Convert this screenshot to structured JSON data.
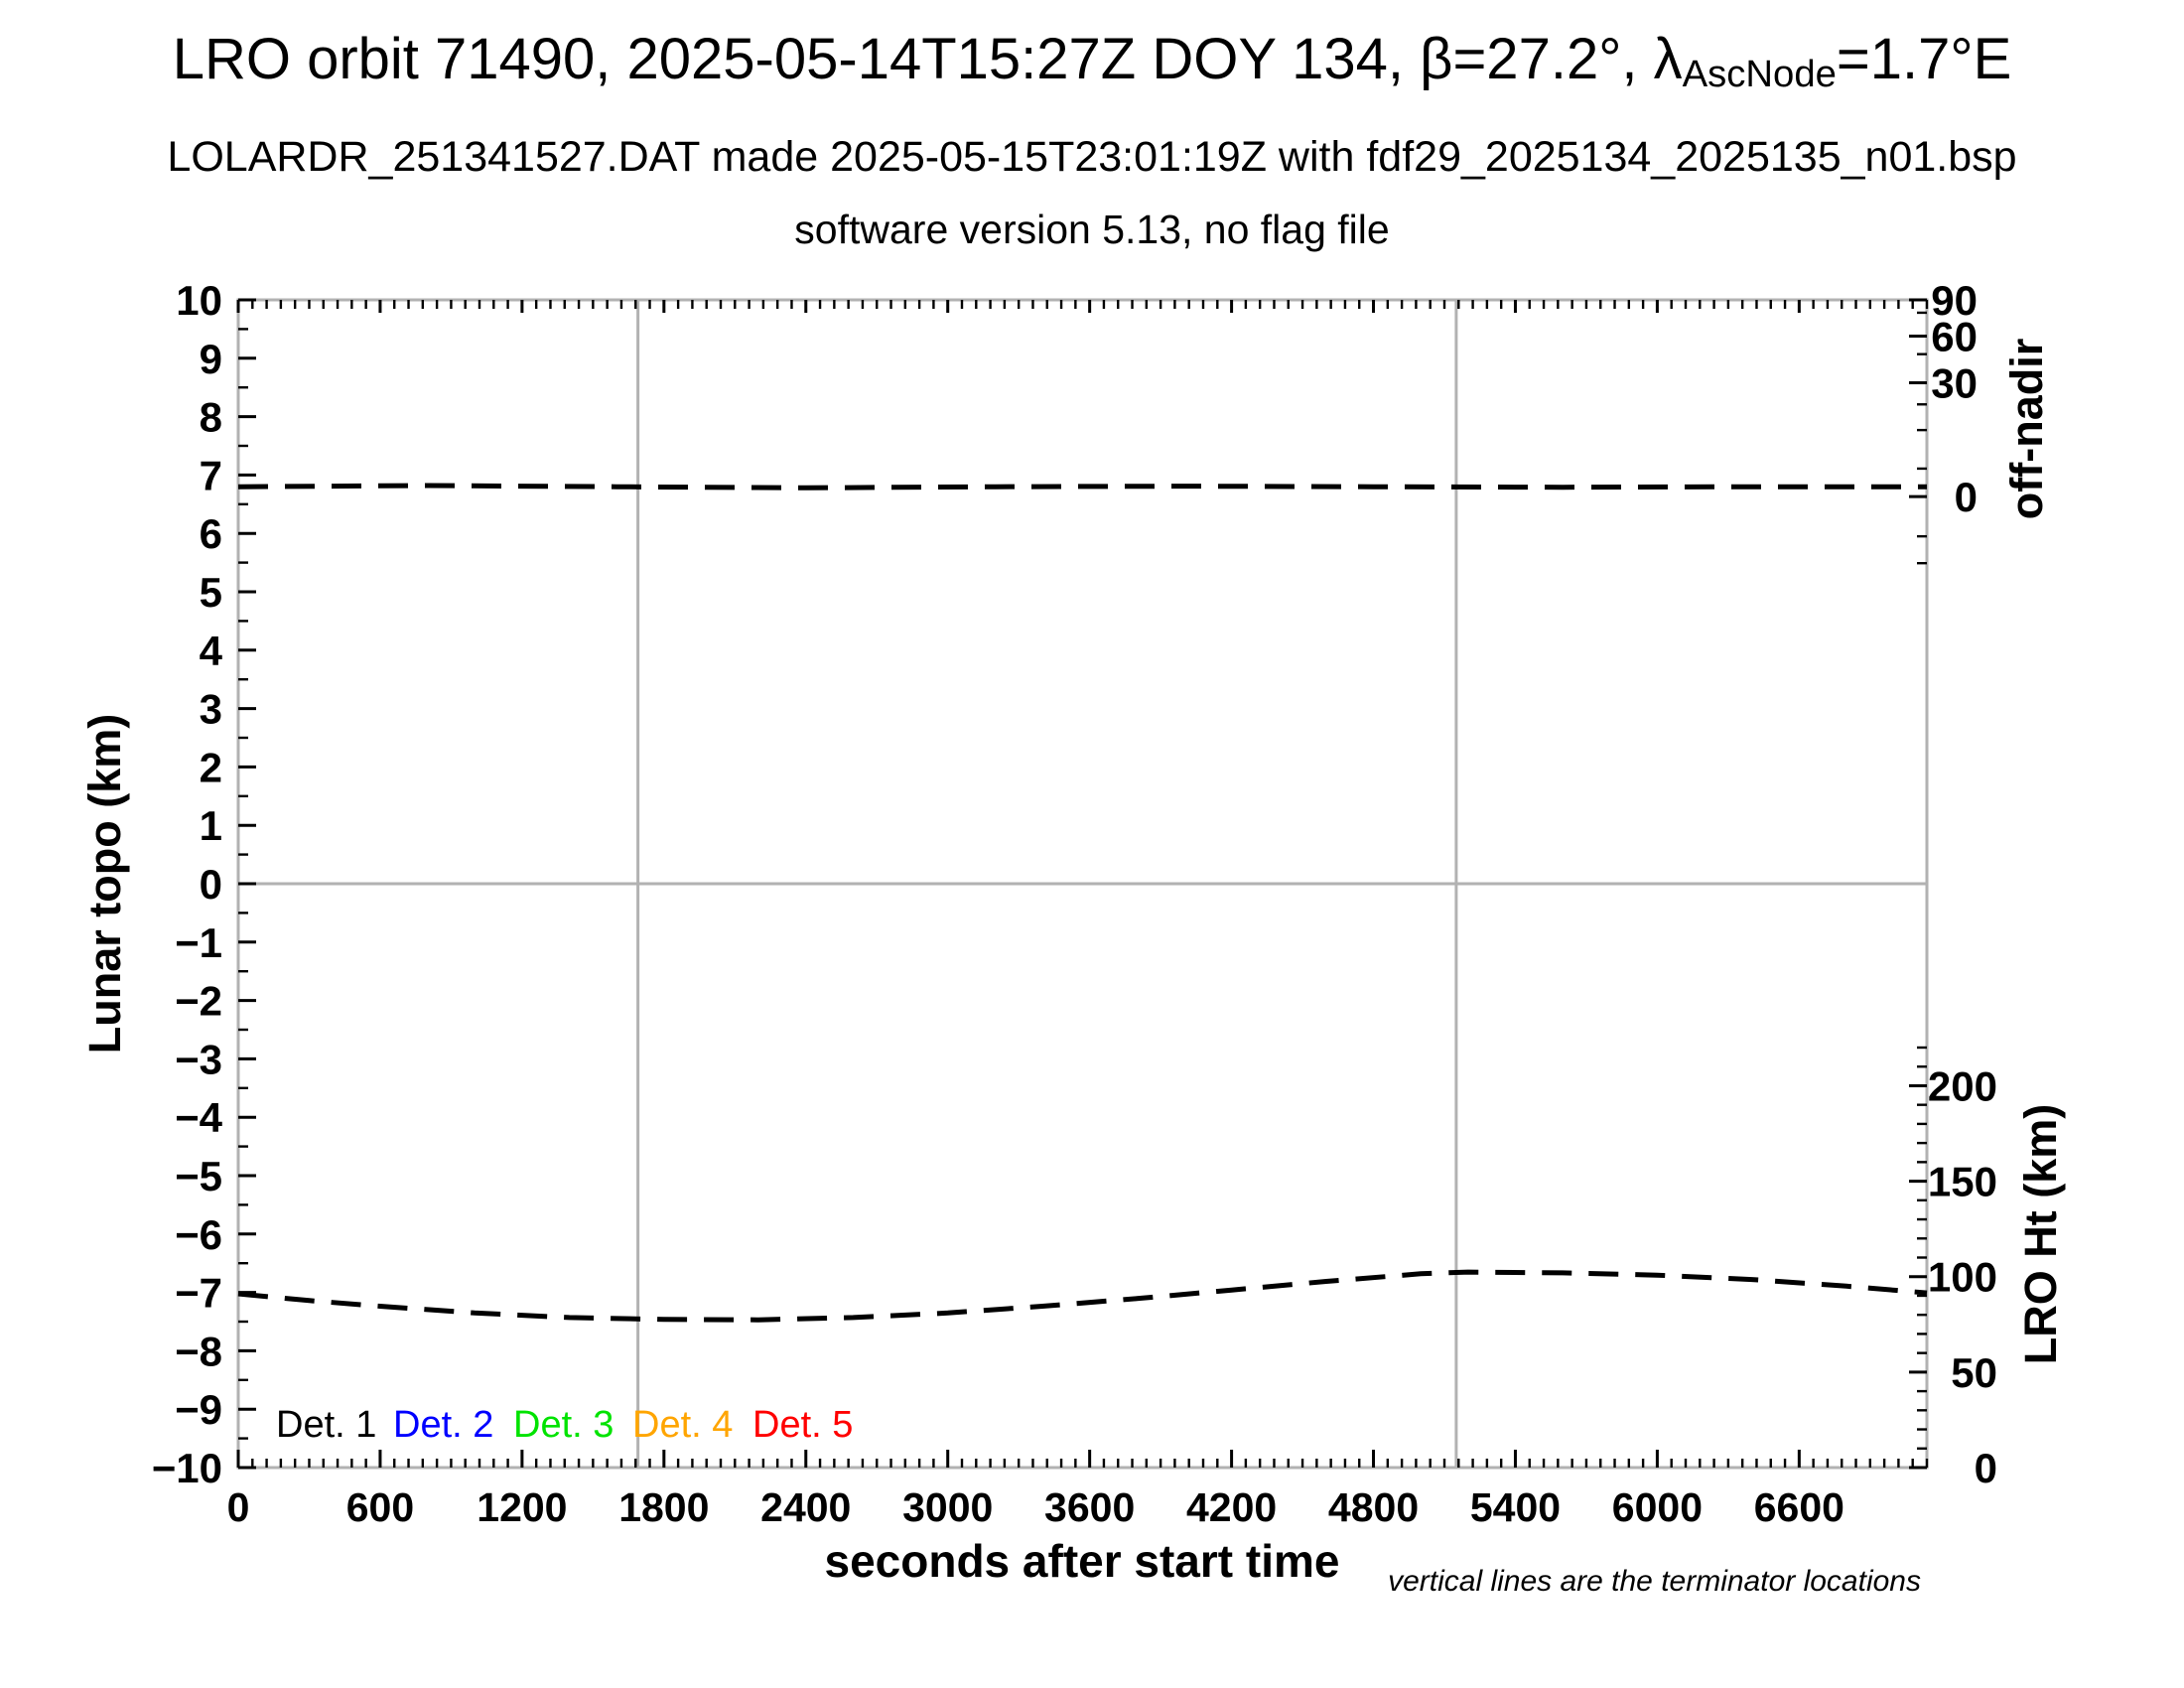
{
  "header": {
    "title_pre": "LRO orbit 71490, 2025-05-14T15:27Z DOY 134, β=27.2°, λ",
    "title_sub": "AscNode",
    "title_post": "=1.7°E",
    "subtitle1": "LOLARDR_251341527.DAT made 2025-05-15T23:01:19Z with fdf29_2025134_2025135_n01.bsp",
    "subtitle2": "software version 5.13, no flag file"
  },
  "footnote": "vertical lines are the terminator locations",
  "legend": {
    "items": [
      {
        "label": "Det. 1",
        "color": "#000000"
      },
      {
        "label": "Det. 2",
        "color": "#0000ff"
      },
      {
        "label": "Det. 3",
        "color": "#00e300"
      },
      {
        "label": "Det. 4",
        "color": "#ffa500"
      },
      {
        "label": "Det. 5",
        "color": "#ff0000"
      }
    ]
  },
  "chart_data": {
    "type": "line",
    "title": "LRO orbit 71490, 2025-05-14T15:27Z DOY 134, β=27.2°, λAscNode=1.7°E",
    "xlabel": "seconds after start time",
    "ylabel_left": "Lunar topo (km)",
    "ylabel_right_upper": "off-nadir",
    "ylabel_right_lower": "LRO Ht (km)",
    "xlim": [
      0,
      7140
    ],
    "x_major_ticks": [
      0,
      600,
      1200,
      1800,
      2400,
      3000,
      3600,
      4200,
      4800,
      5400,
      6000,
      6600
    ],
    "x_minor_step": 60,
    "ylim_left": [
      -10,
      10
    ],
    "y_left_major_step": 1,
    "y_left_minor_step": 0.5,
    "grid": {
      "horizontal_zero_line": 0,
      "vertical_terminator_lines_sec": [
        1690,
        5150
      ]
    },
    "frame_color": "#b2b2b2",
    "gridline_color": "#b2b2b2",
    "off_nadir_axis": {
      "major_ticks": [
        {
          "label": 90,
          "pos_left_units": 10.0
        },
        {
          "label": 60,
          "pos_left_units": 9.38
        },
        {
          "label": 30,
          "pos_left_units": 8.58
        },
        {
          "label": 0,
          "pos_left_units": 6.63
        }
      ],
      "minor_tick_pos_left_units": [
        9.78,
        9.07,
        8.21,
        7.77,
        7.11,
        5.95,
        5.49
      ]
    },
    "lro_ht_axis": {
      "major_ticks_km": [
        200,
        150,
        100,
        50,
        0
      ],
      "minor_step_km": 10,
      "minor_max_km": 220,
      "km_to_left_unit": 0.0327,
      "left_unit_at_zero_km": -10
    },
    "series": [
      {
        "name": "off-nadir pointing angle",
        "color": "#000000",
        "style": "dashed",
        "approx_value_deg": 0,
        "x": [
          0,
          800,
          1600,
          2400,
          3200,
          4000,
          4800,
          5600,
          6400,
          7140
        ],
        "y_left_units": [
          6.8,
          6.82,
          6.8,
          6.78,
          6.8,
          6.81,
          6.8,
          6.79,
          6.8,
          6.8
        ]
      },
      {
        "name": "LRO height",
        "color": "#000000",
        "style": "dashed",
        "x": [
          0,
          300,
          600,
          1000,
          1400,
          1800,
          2200,
          2600,
          3000,
          3400,
          3800,
          4200,
          4600,
          5000,
          5200,
          5600,
          6000,
          6400,
          6800,
          7140
        ],
        "height_km": [
          91,
          87.5,
          84.5,
          81,
          78.6,
          77.6,
          77.4,
          78.6,
          81,
          84.5,
          88.5,
          93,
          97.5,
          101.5,
          102.4,
          102.0,
          100.8,
          98.5,
          95,
          91.5
        ]
      }
    ],
    "legend_position": "bottom-left-inside",
    "annotation": "vertical lines are the terminator locations"
  }
}
